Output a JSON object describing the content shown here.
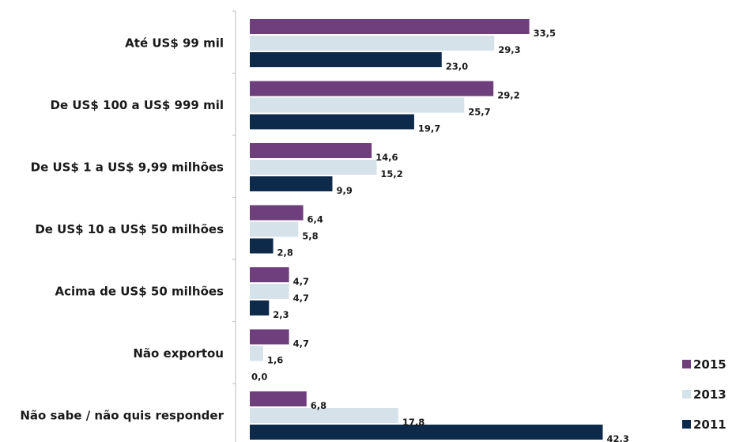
{
  "chart_data": {
    "type": "bar",
    "orientation": "horizontal",
    "categories": [
      "Até US$ 99 mil",
      "De US$ 100 a US$ 999 mil",
      "De US$ 1 a US$ 9,99 milhões",
      "De US$ 10 a US$ 50 milhões",
      "Acima de US$ 50 milhões",
      "Não exportou",
      "Não sabe / não quis responder"
    ],
    "series": [
      {
        "name": "2015",
        "color": "#6e3f7c",
        "values": [
          33.5,
          29.2,
          14.6,
          6.4,
          4.7,
          4.7,
          6.8
        ],
        "labels": [
          "33,5",
          "29,2",
          "14,6",
          "6,4",
          "4,7",
          "4,7",
          "6,8"
        ]
      },
      {
        "name": "2013",
        "color": "#d6e2ea",
        "values": [
          29.3,
          25.7,
          15.2,
          5.8,
          4.7,
          1.6,
          17.8
        ],
        "labels": [
          "29,3",
          "25,7",
          "15,2",
          "5,8",
          "4,7",
          "1,6",
          "17,8"
        ]
      },
      {
        "name": "2011",
        "color": "#0d2a4a",
        "values": [
          23.0,
          19.7,
          9.9,
          2.8,
          2.3,
          0.0,
          42.3
        ],
        "labels": [
          "23,0",
          "19,7",
          "9,9",
          "2,8",
          "2,3",
          "0,0",
          "42,3"
        ]
      }
    ],
    "legend": {
      "position": "bottom-right",
      "order": [
        "2015",
        "2013",
        "2011"
      ]
    },
    "grid": false,
    "title": "",
    "xlabel": "",
    "ylabel": ""
  }
}
